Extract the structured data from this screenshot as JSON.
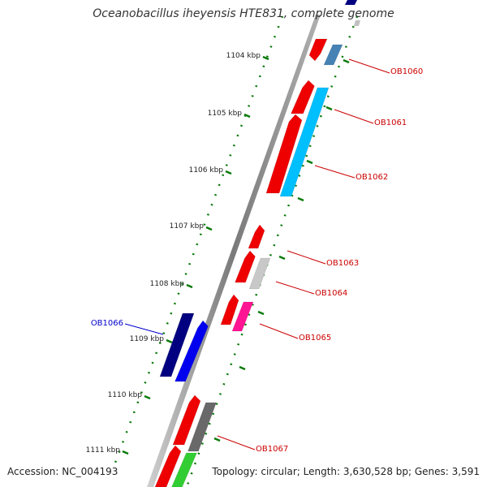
{
  "title": "Oceanobacillus iheyensis HTE831, complete genome",
  "footer": {
    "accession": "Accession: NC_004193",
    "summary": "Topology: circular; Length: 3,630,528 bp; Genes: 3,591"
  },
  "colors": {
    "backbone": "#8c8c8c",
    "tick": "#0a7a0a",
    "label_red": "#cc0000",
    "label_blue": "#0000cc"
  },
  "ticks": [
    {
      "label": "1104 kbp"
    },
    {
      "label": "1105 kbp"
    },
    {
      "label": "1106 kbp"
    },
    {
      "label": "1107 kbp"
    },
    {
      "label": "1108 kbp"
    },
    {
      "label": "1109 kbp"
    },
    {
      "label": "1110 kbp"
    },
    {
      "label": "1111 kbp"
    }
  ],
  "genes": [
    {
      "name": "OB1060",
      "color": "red"
    },
    {
      "name": "OB1061",
      "color": "red"
    },
    {
      "name": "OB1062",
      "color": "red"
    },
    {
      "name": "OB1063",
      "color": "red"
    },
    {
      "name": "OB1064",
      "color": "red"
    },
    {
      "name": "OB1065",
      "color": "red"
    },
    {
      "name": "OB1066",
      "color": "blue"
    },
    {
      "name": "OB1067",
      "color": "red"
    }
  ]
}
